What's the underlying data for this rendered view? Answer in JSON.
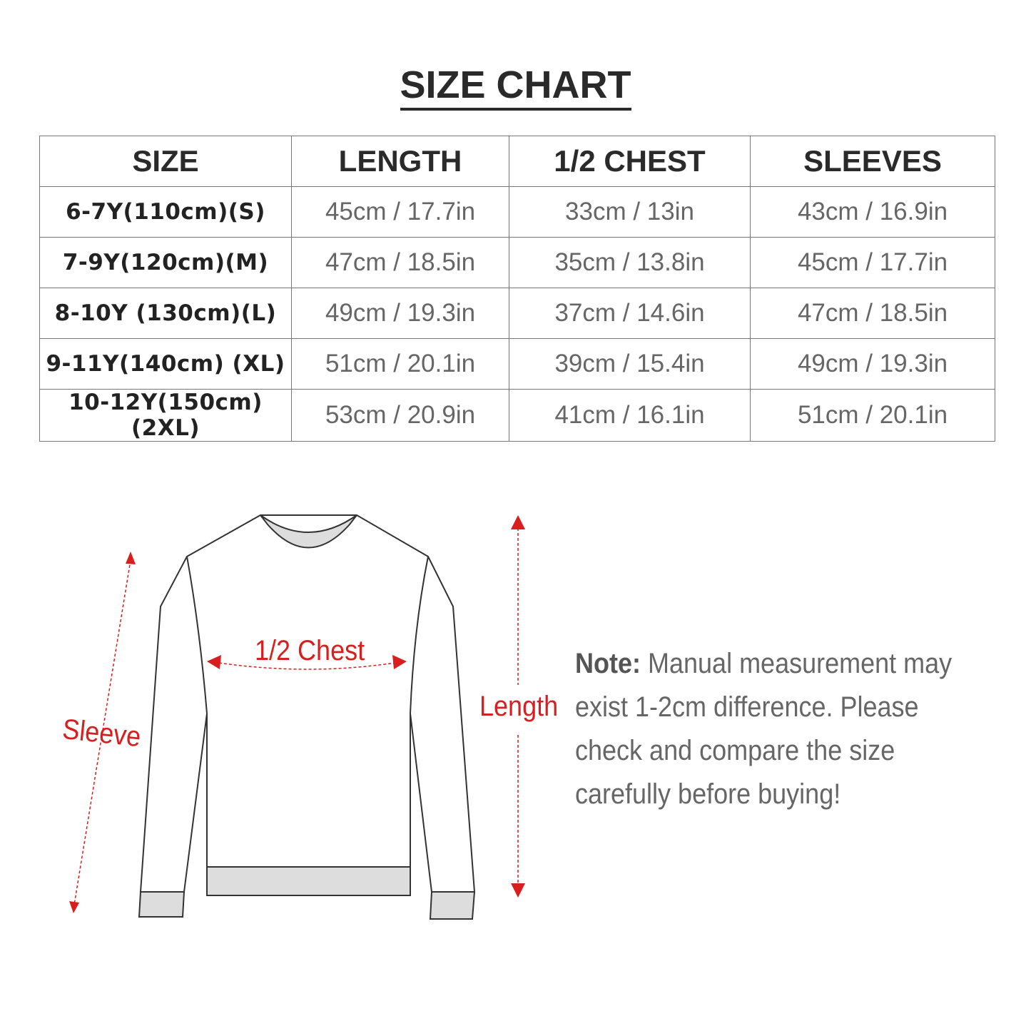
{
  "title": "SIZE CHART",
  "table": {
    "headers": [
      "SIZE",
      "LENGTH",
      "1/2 CHEST",
      "SLEEVES"
    ],
    "rows": [
      [
        "6-7Y(110cm)(S)",
        "45cm / 17.7in",
        "33cm / 13in",
        "43cm / 16.9in"
      ],
      [
        "7-9Y(120cm)(M)",
        "47cm / 18.5in",
        "35cm / 13.8in",
        "45cm / 17.7in"
      ],
      [
        "8-10Y (130cm)(L)",
        "49cm / 19.3in",
        "37cm / 14.6in",
        "47cm / 18.5in"
      ],
      [
        "9-11Y(140cm) (XL)",
        "51cm / 20.1in",
        "39cm / 15.4in",
        "49cm / 19.3in"
      ],
      [
        "10-12Y(150cm) (2XL)",
        "53cm / 20.9in",
        "41cm / 16.1in",
        "51cm / 20.1in"
      ]
    ]
  },
  "diagram": {
    "chest_label": "1/2 Chest",
    "sleeve_label": "Sleeve",
    "length_label": "Length",
    "accent_color": "#d81e1e"
  },
  "note": {
    "label": "Note:",
    "text": " Manual measurement may exist 1-2cm difference. Please check and compare the size carefully before buying!"
  }
}
